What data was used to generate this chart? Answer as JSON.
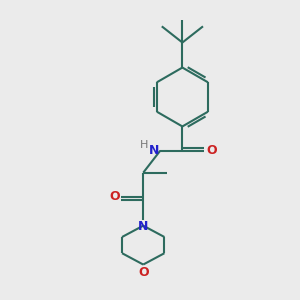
{
  "background_color": "#ebebeb",
  "bond_color": "#2d6b5e",
  "n_color": "#2222cc",
  "o_color": "#cc2222",
  "h_color": "#777777",
  "lw": 1.5,
  "figsize": [
    3.0,
    3.0
  ],
  "dpi": 100,
  "xlim": [
    0,
    10
  ],
  "ylim": [
    0,
    10
  ]
}
